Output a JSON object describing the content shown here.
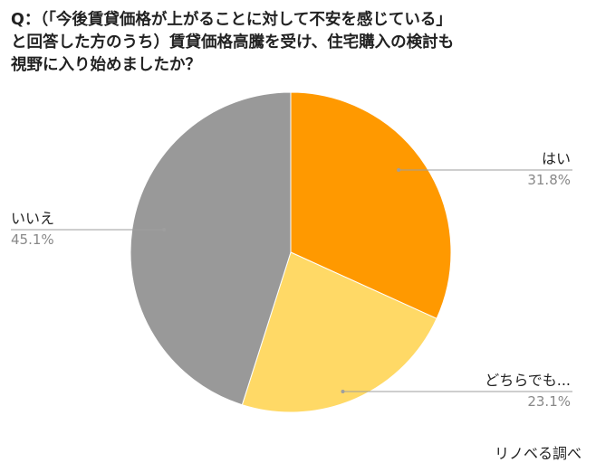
{
  "chart_data": {
    "type": "pie",
    "title_lines": [
      "Q：（「今後賃貸価格が上がることに対して不安を感じている」",
      "と回答した方のうち）賃貸価格高騰を受け、住宅購入の検討も",
      "視野に入り始めましたか？"
    ],
    "slices": [
      {
        "label": "はい",
        "value": 31.8,
        "display": "31.8%",
        "color": "#FF9900"
      },
      {
        "label": "どちらでも...",
        "value": 23.1,
        "display": "23.1%",
        "color": "#FFD966"
      },
      {
        "label": "いいえ",
        "value": 45.1,
        "display": "45.1%",
        "color": "#999999"
      }
    ],
    "start_angle": "12 o'clock",
    "direction": "clockwise",
    "labels": "outside with leader lines",
    "legend": "none"
  },
  "footer": {
    "source": "リノベる調べ"
  }
}
